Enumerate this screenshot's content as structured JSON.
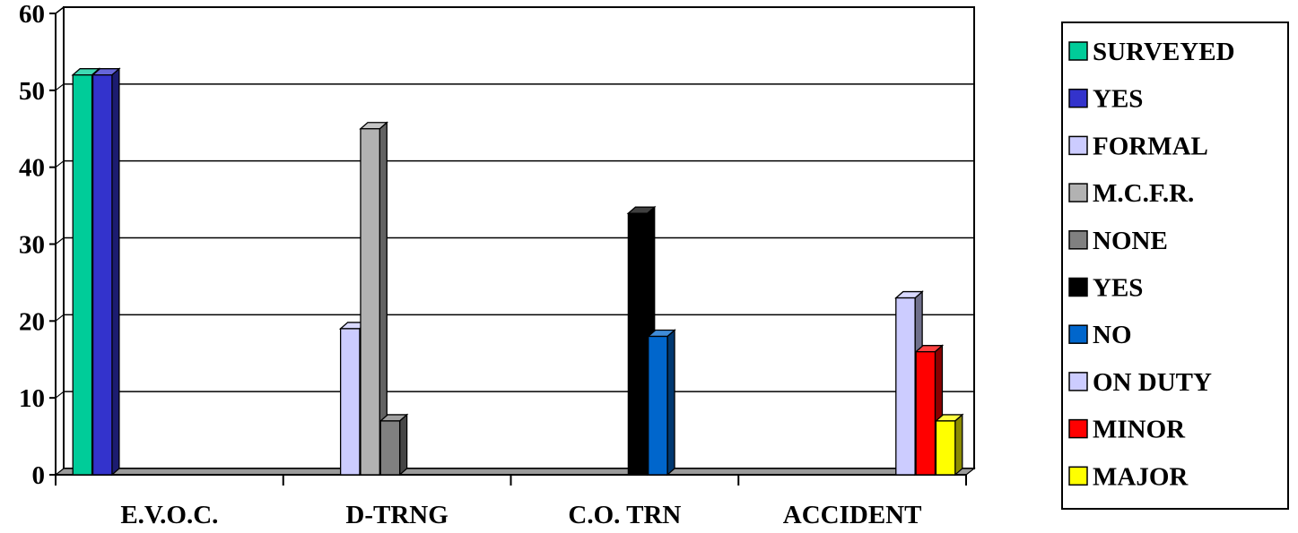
{
  "chart_data": {
    "type": "bar",
    "categories": [
      "E.V.O.C.",
      "D-TRNG",
      "C.O. TRN",
      "ACCIDENT"
    ],
    "ylim": [
      0,
      60
    ],
    "yticks": [
      0,
      10,
      20,
      30,
      40,
      50,
      60
    ],
    "grid": true,
    "style": "3d-clustered",
    "legend_position": "right",
    "series": [
      {
        "name": "SURVEYED",
        "color": "#00CC99",
        "values": [
          52,
          0,
          0,
          0
        ]
      },
      {
        "name": "YES",
        "color": "#3333CC",
        "values": [
          52,
          0,
          0,
          0
        ]
      },
      {
        "name": "FORMAL",
        "color": "#CCCCFF",
        "values": [
          0,
          19,
          0,
          0
        ]
      },
      {
        "name": "M.C.F.R.",
        "color": "#B2B2B2",
        "values": [
          0,
          45,
          0,
          0
        ]
      },
      {
        "name": "NONE",
        "color": "#808080",
        "values": [
          0,
          7,
          0,
          0
        ]
      },
      {
        "name": "YES",
        "color": "#000000",
        "values": [
          0,
          0,
          34,
          0
        ]
      },
      {
        "name": "NO",
        "color": "#0066CC",
        "values": [
          0,
          0,
          18,
          0
        ]
      },
      {
        "name": "ON DUTY",
        "color": "#CCCCFF",
        "values": [
          0,
          0,
          0,
          23
        ]
      },
      {
        "name": "MINOR",
        "color": "#FF0000",
        "values": [
          0,
          0,
          0,
          16
        ]
      },
      {
        "name": "MAJOR",
        "color": "#FFFF00",
        "values": [
          0,
          0,
          0,
          7
        ]
      }
    ]
  }
}
